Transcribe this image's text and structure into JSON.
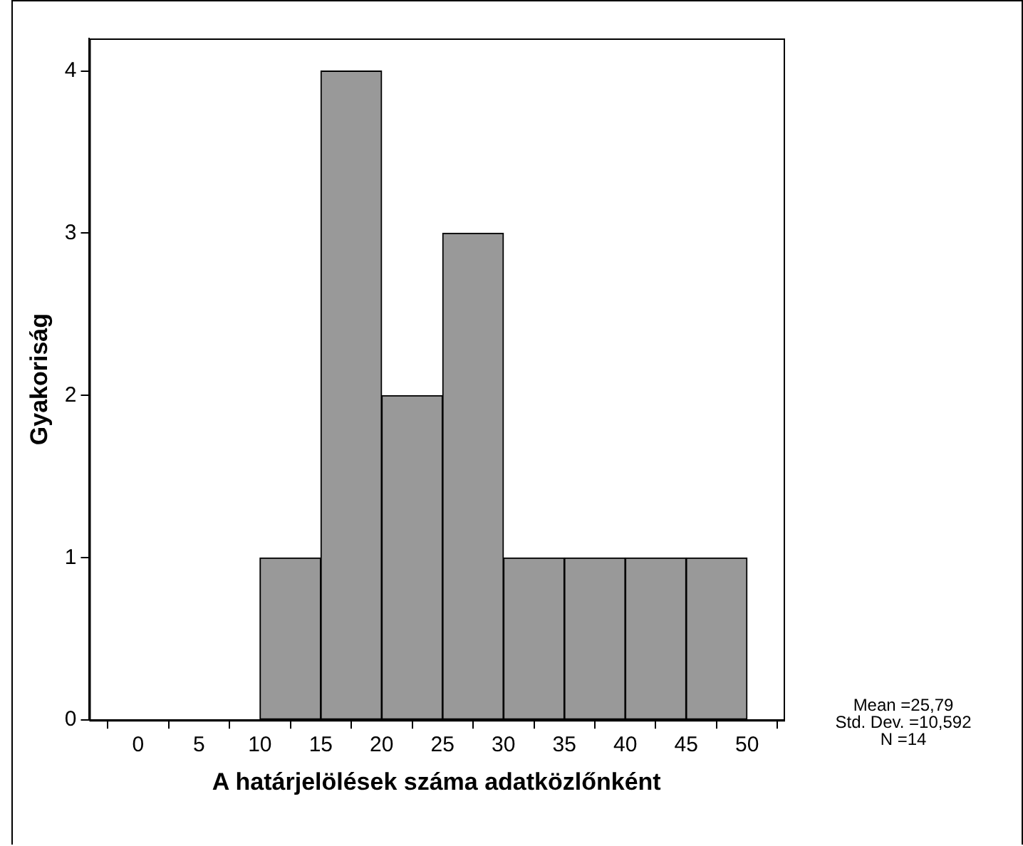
{
  "chart_data": {
    "type": "histogram",
    "xlabel": "A határjelölések száma adatközlőnként",
    "ylabel": "Gyakoriság",
    "bins": [
      10,
      15,
      20,
      25,
      30,
      35,
      40,
      45,
      50
    ],
    "values": [
      1,
      4,
      2,
      3,
      1,
      1,
      1,
      1
    ],
    "color": "#999999",
    "xlim": [
      -4,
      53
    ],
    "xticks": [
      0,
      5,
      10,
      15,
      20,
      25,
      30,
      35,
      40,
      45,
      50
    ],
    "ylim": [
      0,
      4.2
    ],
    "yticks": [
      0,
      1,
      2,
      3,
      4
    ],
    "grid": false,
    "legend": false,
    "annotations": [
      "Mean =25,79",
      "Std. Dev. =10,592",
      "N =14"
    ]
  }
}
